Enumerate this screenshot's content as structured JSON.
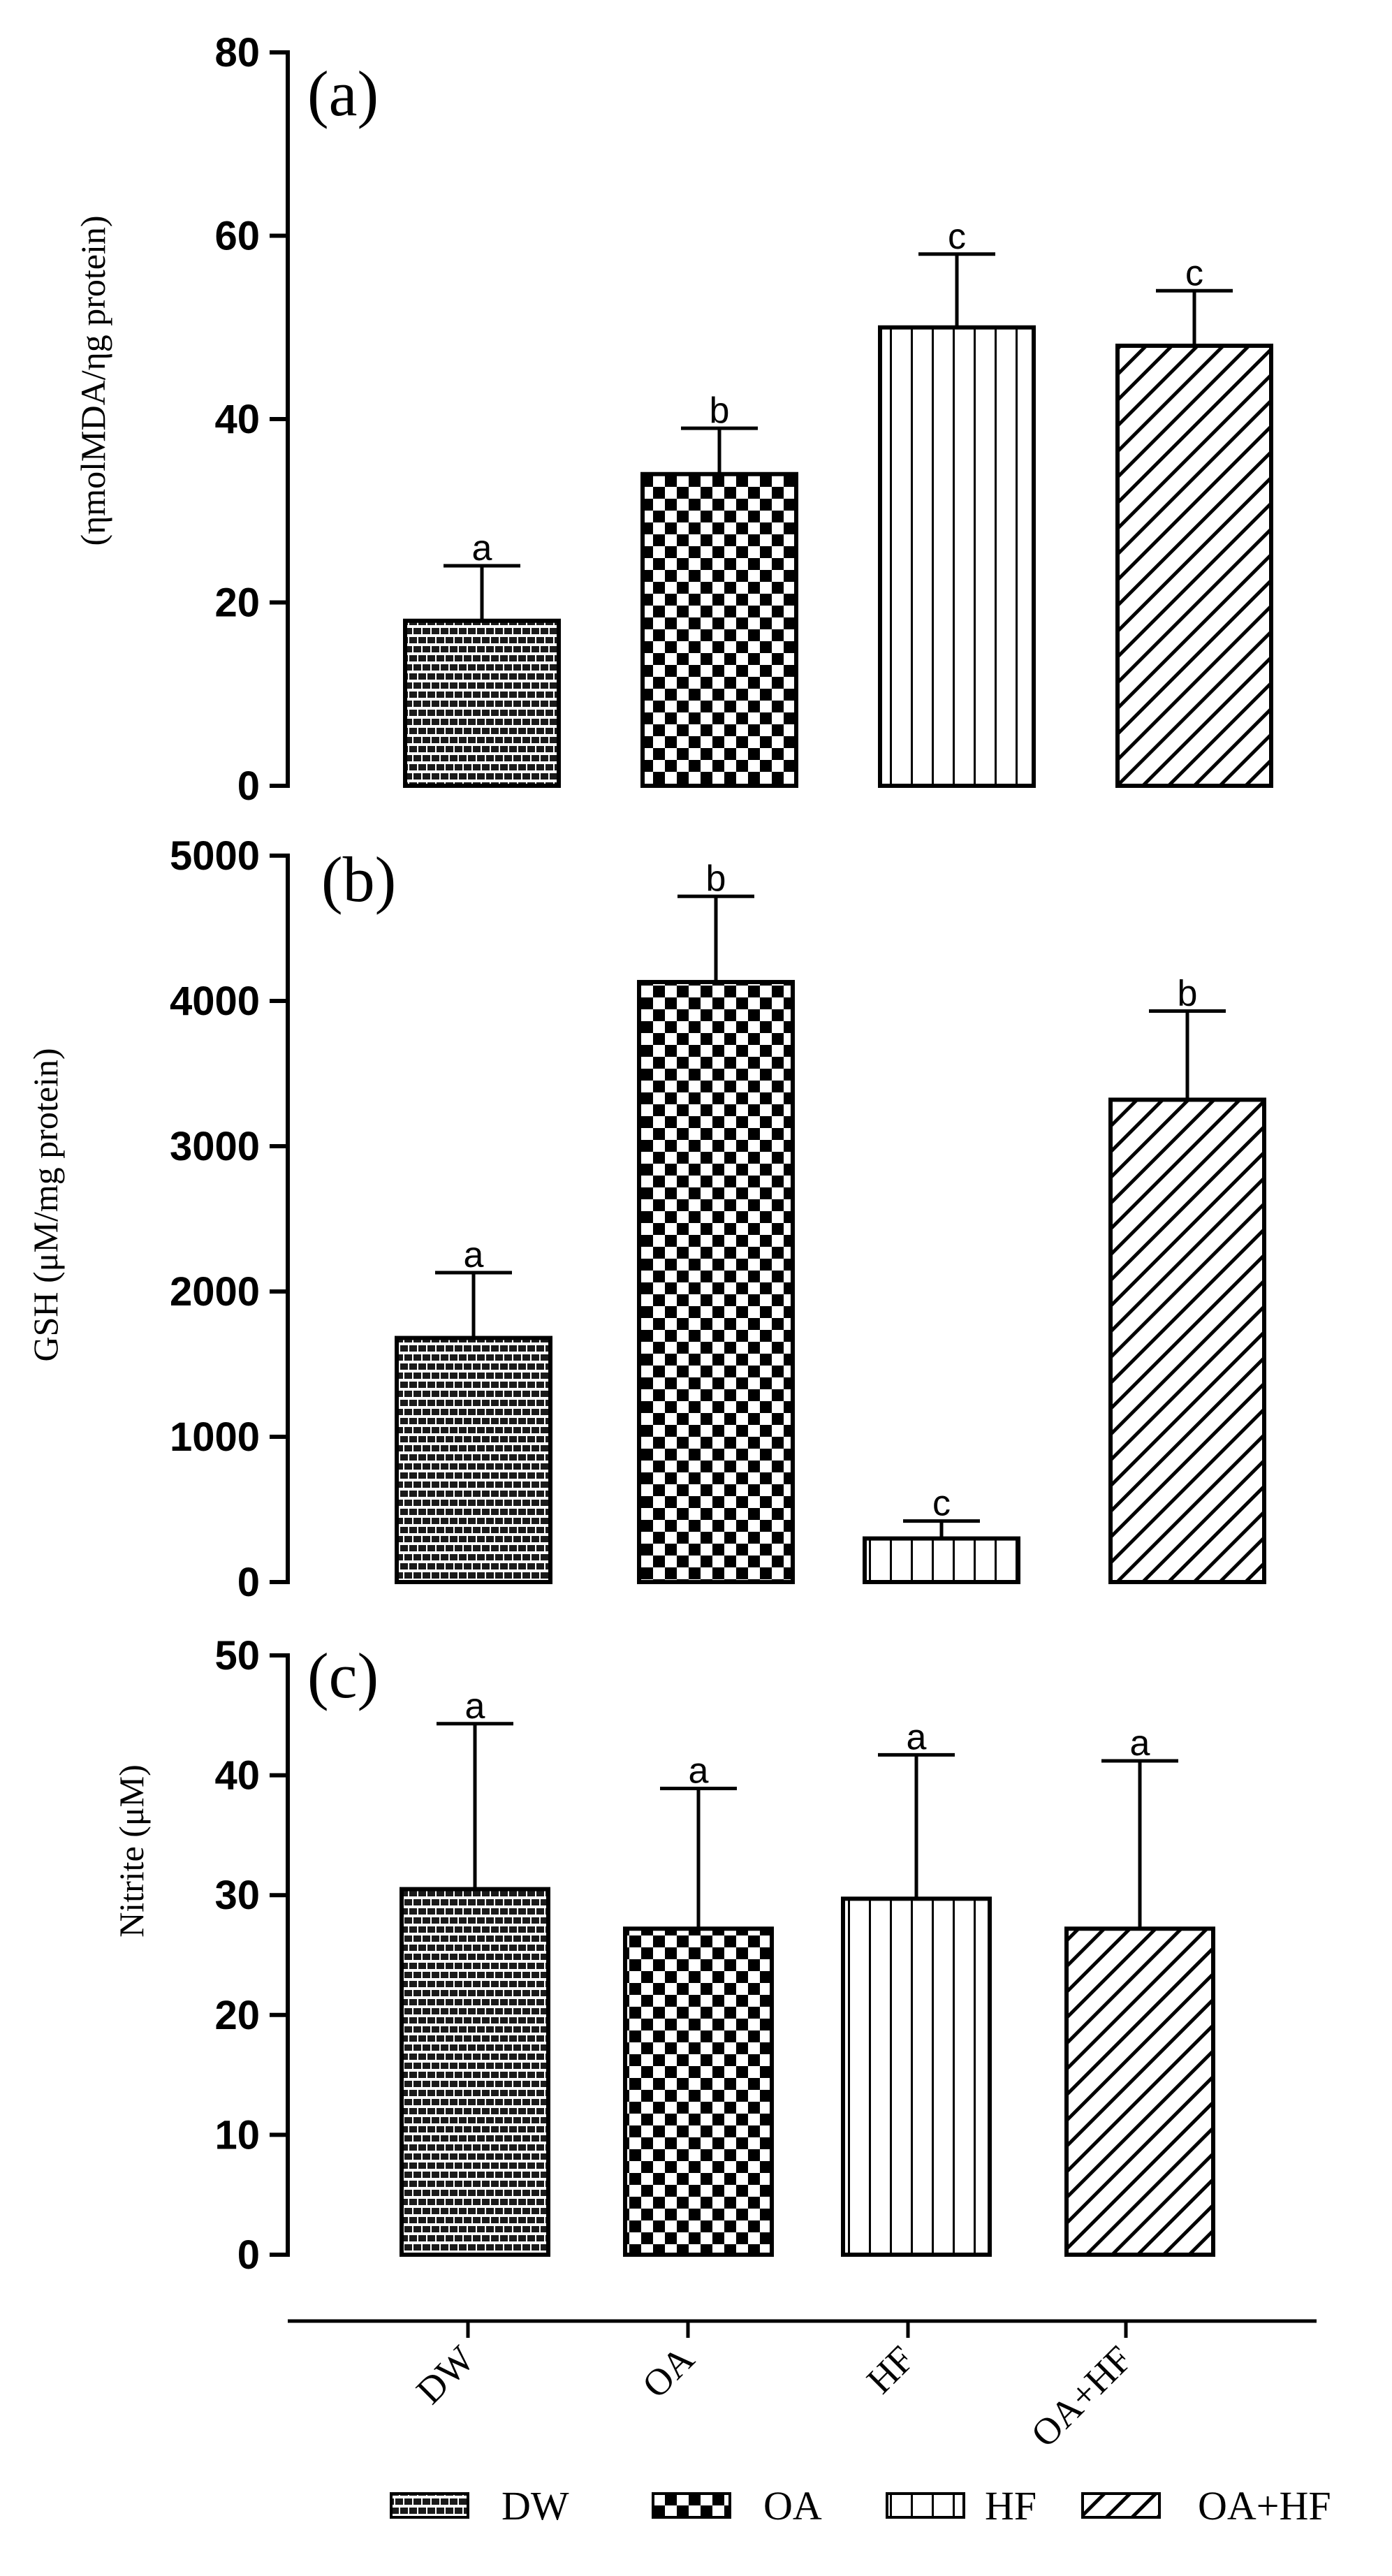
{
  "categories": [
    "DW",
    "OA",
    "HF",
    "OA+HF"
  ],
  "patterns": {
    "DW": "brick-pattern",
    "OA": "checker-pattern",
    "HF": "vertical-stripe-pattern",
    "OA+HF": "diagonal-stripe-pattern"
  },
  "legend": {
    "entries": [
      {
        "label": "DW",
        "pattern": "brick-pattern"
      },
      {
        "label": "OA",
        "pattern": "checker-pattern"
      },
      {
        "label": "HF",
        "pattern": "vertical-stripe-pattern"
      },
      {
        "label": "OA+HF",
        "pattern": "diagonal-stripe-pattern"
      }
    ]
  },
  "chart_data": [
    {
      "type": "bar",
      "panel_label": "(a)",
      "ylabel": "(ηmolMDA/ηg protein)",
      "categories": [
        "DW",
        "OA",
        "HF",
        "OA+HF"
      ],
      "values": [
        18,
        34,
        50,
        48
      ],
      "errors": [
        6,
        5,
        8,
        6
      ],
      "significance": [
        "a",
        "b",
        "c",
        "c"
      ],
      "ylim": [
        0,
        80
      ],
      "yticks": [
        0,
        20,
        40,
        60,
        80
      ]
    },
    {
      "type": "bar",
      "panel_label": "(b)",
      "ylabel": "GSH (μM/mg protein)",
      "categories": [
        "DW",
        "OA",
        "HF",
        "OA+HF"
      ],
      "values": [
        1680,
        4130,
        300,
        3320
      ],
      "errors": [
        450,
        590,
        120,
        610
      ],
      "significance": [
        "a",
        "b",
        "c",
        "b"
      ],
      "ylim": [
        0,
        5000
      ],
      "yticks": [
        0,
        1000,
        2000,
        3000,
        4000,
        5000
      ]
    },
    {
      "type": "bar",
      "panel_label": "(c)",
      "ylabel": "Nitrite (μM)",
      "categories": [
        "DW",
        "OA",
        "HF",
        "OA+HF"
      ],
      "values": [
        30.5,
        27.2,
        29.7,
        27.2
      ],
      "errors": [
        13.8,
        11.7,
        12.0,
        14.0
      ],
      "significance": [
        "a",
        "a",
        "a",
        "a"
      ],
      "ylim": [
        0,
        50
      ],
      "yticks": [
        0,
        10,
        20,
        30,
        40,
        50
      ]
    }
  ]
}
